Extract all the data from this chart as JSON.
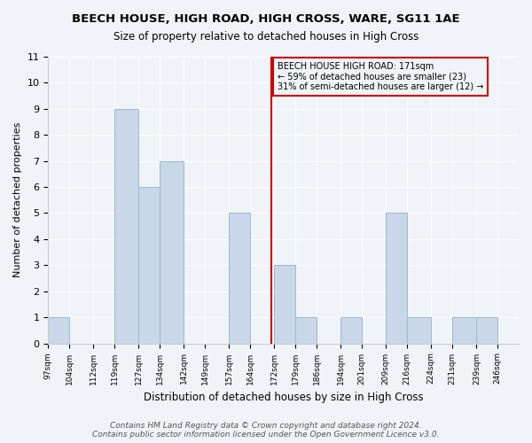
{
  "title": "BEECH HOUSE, HIGH ROAD, HIGH CROSS, WARE, SG11 1AE",
  "subtitle": "Size of property relative to detached houses in High Cross",
  "xlabel": "Distribution of detached houses by size in High Cross",
  "ylabel": "Number of detached properties",
  "bin_labels": [
    "97sqm",
    "104sqm",
    "112sqm",
    "119sqm",
    "127sqm",
    "134sqm",
    "142sqm",
    "149sqm",
    "157sqm",
    "164sqm",
    "172sqm",
    "179sqm",
    "186sqm",
    "194sqm",
    "201sqm",
    "209sqm",
    "216sqm",
    "224sqm",
    "231sqm",
    "239sqm",
    "246sqm"
  ],
  "bin_edges": [
    97,
    104,
    112,
    119,
    127,
    134,
    142,
    149,
    157,
    164,
    172,
    179,
    186,
    194,
    201,
    209,
    216,
    224,
    231,
    239,
    246
  ],
  "counts": [
    1,
    0,
    0,
    9,
    6,
    7,
    0,
    0,
    5,
    0,
    3,
    1,
    0,
    1,
    0,
    5,
    1,
    0,
    1,
    1
  ],
  "bar_color": "#c8d8e8",
  "bar_edgecolor": "#a0b8cc",
  "reference_line_x": 171,
  "reference_line_color": "#cc0000",
  "annotation_text": "BEECH HOUSE HIGH ROAD: 171sqm\n← 59% of detached houses are smaller (23)\n31% of semi-detached houses are larger (12) →",
  "annotation_box_edgecolor": "#cc0000",
  "ylim": [
    0,
    11
  ],
  "yticks": [
    0,
    1,
    2,
    3,
    4,
    5,
    6,
    7,
    8,
    9,
    10,
    11
  ],
  "footer_text": "Contains HM Land Registry data © Crown copyright and database right 2024.\nContains public sector information licensed under the Open Government Licence v3.0.",
  "bg_color": "#f0f4f8"
}
